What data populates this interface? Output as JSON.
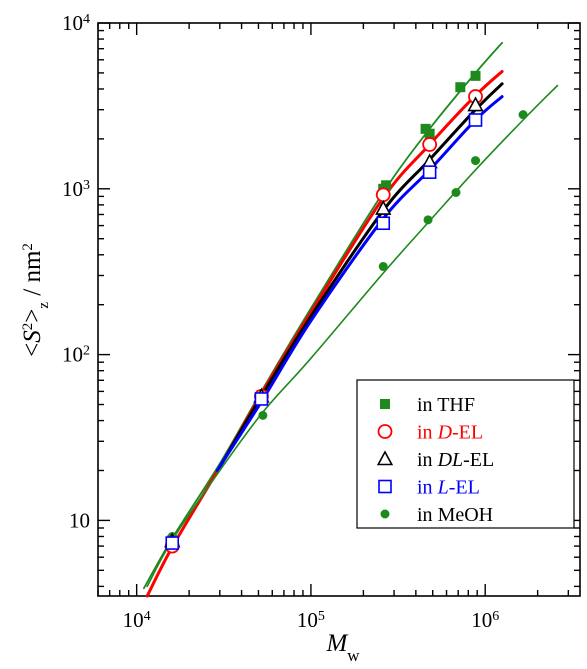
{
  "chart_data": {
    "type": "scatter",
    "x_scale": "log",
    "y_scale": "log",
    "xlim": [
      6000,
      3500000
    ],
    "ylim": [
      3.5,
      10000
    ],
    "grid": false,
    "legend_position": "bottom-right",
    "x_ticks": [
      {
        "value": 10000,
        "base": "10",
        "exp": "4"
      },
      {
        "value": 100000,
        "base": "10",
        "exp": "5"
      },
      {
        "value": 1000000,
        "base": "10",
        "exp": "6"
      }
    ],
    "y_ticks": [
      {
        "value": 10,
        "base": "10",
        "exp": ""
      },
      {
        "value": 100,
        "base": "10",
        "exp": "2"
      },
      {
        "value": 1000,
        "base": "10",
        "exp": "3"
      },
      {
        "value": 10000,
        "base": "10",
        "exp": "4"
      }
    ],
    "xlabel": {
      "symbol": "M",
      "sub": "w"
    },
    "ylabel": {
      "open": "<",
      "symbol": "S",
      "sup": "2",
      "close": ">",
      "sub": "z",
      "unit": " / nm",
      "unit_sup": "2"
    },
    "series": [
      {
        "legend": {
          "prefix": "in ",
          "italic": "",
          "suffix": "THF"
        },
        "marker": "filled-square",
        "color": "#1e8a1e",
        "points": [
          [
            16000,
            7.6
          ],
          [
            52000,
            57
          ],
          [
            260000,
            1000
          ],
          [
            270000,
            1050
          ],
          [
            455000,
            2300
          ],
          [
            480000,
            2150
          ],
          [
            720000,
            4100
          ],
          [
            880000,
            4800
          ]
        ],
        "fit": [
          [
            11000,
            3.9
          ],
          [
            16000,
            7.8
          ],
          [
            30000,
            22
          ],
          [
            52000,
            60
          ],
          [
            100000,
            190
          ],
          [
            260000,
            950
          ],
          [
            480000,
            2300
          ],
          [
            880000,
            5000
          ],
          [
            1250000,
            7600
          ]
        ]
      },
      {
        "legend": {
          "prefix": "in ",
          "italic": "D",
          "suffix": "-EL"
        },
        "marker": "open-circle",
        "color": "#ff0000",
        "points": [
          [
            16000,
            7.0
          ],
          [
            52000,
            56
          ],
          [
            260000,
            920
          ],
          [
            480000,
            1850
          ],
          [
            880000,
            3600
          ]
        ],
        "fit": [
          [
            11500,
            3.5
          ],
          [
            16000,
            6.9
          ],
          [
            30000,
            21
          ],
          [
            52000,
            58
          ],
          [
            100000,
            180
          ],
          [
            260000,
            880
          ],
          [
            480000,
            1850
          ],
          [
            880000,
            3650
          ],
          [
            1250000,
            5100
          ]
        ]
      },
      {
        "legend": {
          "prefix": "in ",
          "italic": "DL",
          "suffix": "-EL"
        },
        "marker": "open-triangle",
        "color": "#000000",
        "points": [
          [
            16000,
            7.5
          ],
          [
            52000,
            56
          ],
          [
            260000,
            760
          ],
          [
            480000,
            1450
          ],
          [
            880000,
            3200
          ]
        ],
        "fit": [
          [
            30000,
            21
          ],
          [
            52000,
            56
          ],
          [
            100000,
            170
          ],
          [
            260000,
            740
          ],
          [
            480000,
            1500
          ],
          [
            880000,
            3000
          ],
          [
            1250000,
            4300
          ]
        ]
      },
      {
        "legend": {
          "prefix": "in ",
          "italic": "L",
          "suffix": "-EL"
        },
        "marker": "open-square",
        "color": "#0000ff",
        "points": [
          [
            16000,
            7.3
          ],
          [
            52000,
            54
          ],
          [
            260000,
            620
          ],
          [
            480000,
            1260
          ],
          [
            880000,
            2600
          ]
        ],
        "fit": [
          [
            29000,
            20
          ],
          [
            52000,
            52
          ],
          [
            100000,
            160
          ],
          [
            260000,
            660
          ],
          [
            480000,
            1300
          ],
          [
            880000,
            2600
          ],
          [
            1250000,
            3600
          ]
        ]
      },
      {
        "legend": {
          "prefix": "in ",
          "italic": "",
          "suffix": "MeOH"
        },
        "marker": "filled-circle",
        "color": "#1e8a1e",
        "points": [
          [
            16000,
            8.0
          ],
          [
            53000,
            43
          ],
          [
            260000,
            340
          ],
          [
            470000,
            650
          ],
          [
            680000,
            950
          ],
          [
            880000,
            1480
          ],
          [
            1650000,
            2800
          ]
        ],
        "fit": [
          [
            11500,
            4.0
          ],
          [
            16000,
            7.6
          ],
          [
            30000,
            20
          ],
          [
            53000,
            45
          ],
          [
            100000,
            95
          ],
          [
            260000,
            310
          ],
          [
            480000,
            640
          ],
          [
            880000,
            1300
          ],
          [
            1650000,
            2600
          ],
          [
            2600000,
            4200
          ]
        ]
      }
    ]
  }
}
